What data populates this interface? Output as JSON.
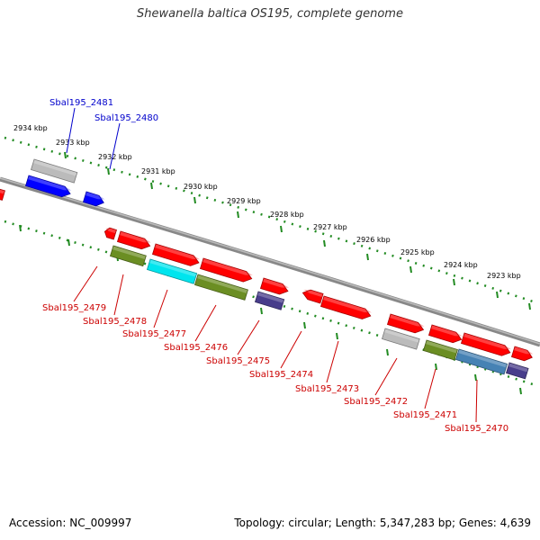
{
  "title": "Shewanella baltica OS195, complete genome",
  "accession": "Accession: NC_009997",
  "summary": "Topology: circular; Length: 5,347,283 bp; Genes: 4,639",
  "ticks": [
    "2934 kbp",
    "2933 kbp",
    "2932 kbp",
    "2931 kbp",
    "2930 kbp",
    "2929 kbp",
    "2928 kbp",
    "2927 kbp",
    "2926 kbp",
    "2925 kbp",
    "2924 kbp",
    "2923 kbp"
  ],
  "upper_labels": [
    "Sbal195_2481",
    "Sbal195_2480"
  ],
  "lower_labels": [
    "Sbal195_2479",
    "Sbal195_2478",
    "Sbal195_2477",
    "Sbal195_2476",
    "Sbal195_2475",
    "Sbal195_2474",
    "Sbal195_2473",
    "Sbal195_2472",
    "Sbal195_2471",
    "Sbal195_2470"
  ],
  "colors": {
    "red": "#ff0000",
    "blue": "#0000ff",
    "grey": "#bbbbbb",
    "olive": "#6b8e23",
    "cyan": "#00e5ee",
    "navy": "#483d8b",
    "steel": "#4682b4",
    "backbone": "#888888",
    "dots": "#228b22",
    "upper_label": "#0000cc",
    "lower_label": "#cc0000"
  }
}
